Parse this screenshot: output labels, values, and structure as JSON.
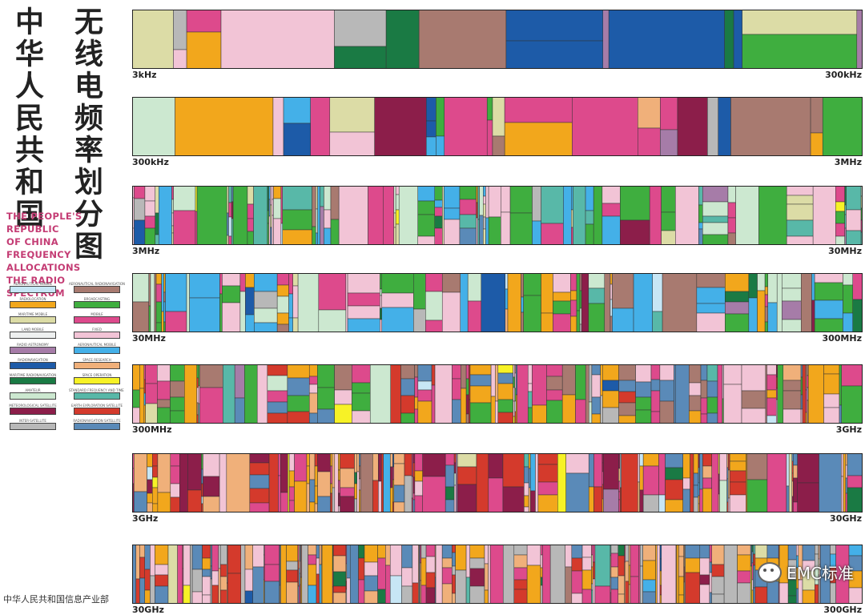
{
  "title": {
    "cn_line1": "中华人民共和国",
    "cn_line2": "无线电频率划分图",
    "en_lines": [
      "THE PEOPLE'S REPUBLIC",
      "OF CHINA",
      "FREQUENCY ALLOCATIONS",
      "THE RADIO SPECTRUM"
    ],
    "ministry": "中华人民共和国信息产业部"
  },
  "colors": {
    "aeronautical_mobile": "#c7e6f5",
    "aeronautical_radionavigation": "#a87a70",
    "radiolocation": "#f2a71c",
    "broadcasting": "#3fae3f",
    "maritime_mobile": "#dcdca6",
    "mobile": "#dd4a8c",
    "land_mobile": "#eef0f0",
    "fixed": "#f2c4d6",
    "radio_astronomy": "#a67ca8",
    "aeronautical_mobile_r": "#44b0e8",
    "radionavigation": "#1d5ba8",
    "space_research": "#f0b07a",
    "maritime_radionavigation": "#1a7a44",
    "space_operation": "#f7f226",
    "amateur": "#cce8d0",
    "standard_frequency": "#58b8a8",
    "meteorological_satellite": "#8c1e4a",
    "earth_exploration": "#d43a2c",
    "inter_satellite": "#b8b8b8",
    "radionavigation_satellite": "#5a8ab8",
    "grey": "#8c9ba0"
  },
  "legend": [
    {
      "label": "AERONAUTICAL MOBILE",
      "color": "#c7e6f5"
    },
    {
      "label": "AERONAUTICAL RADIONAVIGATION",
      "color": "#a87a70"
    },
    {
      "label": "RADIOLOCATION",
      "color": "#f2a71c"
    },
    {
      "label": "BROADCASTING",
      "color": "#3fae3f"
    },
    {
      "label": "MARITIME MOBILE",
      "color": "#dcdca6"
    },
    {
      "label": "MOBILE",
      "color": "#dd4a8c"
    },
    {
      "label": "LAND MOBILE",
      "color": "#eef0f0"
    },
    {
      "label": "FIXED",
      "color": "#f2c4d6"
    },
    {
      "label": "RADIO ASTRONOMY",
      "color": "#a67ca8"
    },
    {
      "label": "AERONAUTICAL MOBILE",
      "color": "#44b0e8"
    },
    {
      "label": "RADIONAVIGATION",
      "color": "#1d5ba8"
    },
    {
      "label": "SPACE RESEARCH",
      "color": "#f0b07a"
    },
    {
      "label": "MARITIME RADIONAVIGATION",
      "color": "#1a7a44"
    },
    {
      "label": "SPACE OPERATION",
      "color": "#f7f226"
    },
    {
      "label": "AMATEUR",
      "color": "#cce8d0"
    },
    {
      "label": "STANDARD FREQUENCY AND TIME SIGNAL",
      "color": "#58b8a8"
    },
    {
      "label": "METEOROLOGICAL SATELLITE",
      "color": "#8c1e4a"
    },
    {
      "label": "EARTH EXPLORATION SATELLITE",
      "color": "#d43a2c"
    },
    {
      "label": "INTER-SATELLITE",
      "color": "#b8b8b8"
    },
    {
      "label": "RADIONAVIGATION SATELLITE",
      "color": "#5a8ab8"
    }
  ],
  "chart_data": {
    "type": "table",
    "bands": [
      {
        "start": "3kHz",
        "end": "300kHz"
      },
      {
        "start": "300kHz",
        "end": "3MHz"
      },
      {
        "start": "3MHz",
        "end": "30MHz"
      },
      {
        "start": "30MHz",
        "end": "300MHz"
      },
      {
        "start": "300MHz",
        "end": "3GHz"
      },
      {
        "start": "3GHz",
        "end": "30GHz"
      },
      {
        "start": "30GHz",
        "end": "300GHz"
      }
    ]
  },
  "watermark": "EMC标准"
}
